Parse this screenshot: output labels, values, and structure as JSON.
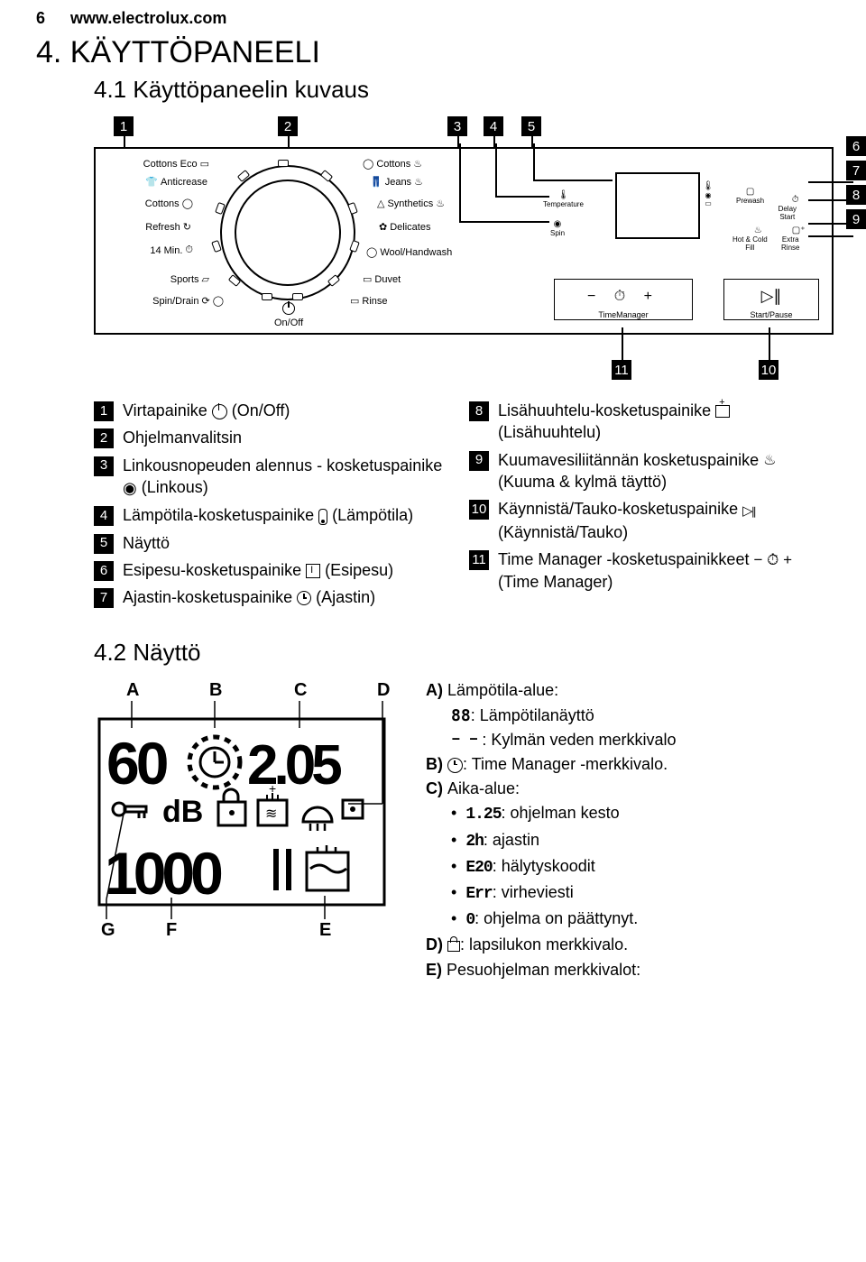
{
  "header": {
    "page_number": "6",
    "url": "www.electrolux.com"
  },
  "h1": "4. KÄYTTÖPANEELI",
  "s41": "4.1 Käyttöpaneelin kuvaus",
  "panel": {
    "left_labels": [
      "Cottons Eco",
      "Anticrease",
      "Cottons",
      "Refresh",
      "14 Min.",
      "Sports",
      "Spin/Drain"
    ],
    "right_labels": [
      "Cottons",
      "Jeans",
      "Synthetics",
      "Delicates",
      "Wool/Handwash",
      "Duvet",
      "Rinse"
    ],
    "onoff": "On/Off",
    "small": {
      "temperature": "Temperature",
      "spin": "Spin",
      "prewash": "Prewash",
      "delay": "Delay\nStart",
      "hotcold": "Hot & Cold\nFill",
      "extra": "Extra\nRinse"
    },
    "tm": "TimeManager",
    "sp": "Start/Pause",
    "tm_icons": "−  ⏱  +",
    "sp_icon": "▷∥"
  },
  "callouts": {
    "n1": "1",
    "n2": "2",
    "n3": "3",
    "n4": "4",
    "n5": "5",
    "n6": "6",
    "n7": "7",
    "n8": "8",
    "n9": "9",
    "n10": "10",
    "n11": "11"
  },
  "list_left": [
    {
      "n": "1",
      "t": "Virtapainike ",
      "t2": " (On/Off)",
      "icon": "power"
    },
    {
      "n": "2",
      "t": "Ohjelmanvalitsin",
      "icon": null
    },
    {
      "n": "3",
      "t": "Linkousnopeuden alennus - kosketuspainike ",
      "t2": " (Linkous)",
      "icon": "spiral"
    },
    {
      "n": "4",
      "t": "Lämpötila-kosketuspainike ",
      "t2": " (Lämpötila)",
      "icon": "therm"
    },
    {
      "n": "5",
      "t": "Näyttö",
      "icon": null
    },
    {
      "n": "6",
      "t": "Esipesu-kosketuspainike ",
      "t2": " (Esipesu)",
      "icon": "prewash"
    },
    {
      "n": "7",
      "t": "Ajastin-kosketuspainike ",
      "t2": " (Ajastin)",
      "icon": "clock"
    }
  ],
  "list_right": [
    {
      "n": "8",
      "t": "Lisähuuhtelu-kosketuspainike ",
      "t2": " (Lisähuuhtelu)",
      "icon": "rinse"
    },
    {
      "n": "9",
      "t": "Kuumavesiliitännän kosketuspainike ",
      "t2": " (Kuuma & kylmä täyttö)",
      "icon": "hot"
    },
    {
      "n": "10",
      "t": "Käynnistä/Tauko-kosketuspainike ",
      "t2": " (Käynnistä/Tauko)",
      "icon": "play"
    },
    {
      "n": "11",
      "t": "Time Manager -kosketuspainikkeet ",
      "t2": " (Time Manager)",
      "icon": "tm"
    }
  ],
  "s42": "4.2 Näyttö",
  "disp": {
    "letters": {
      "A": "A",
      "B": "B",
      "C": "C",
      "D": "D",
      "E": "E",
      "F": "F",
      "G": "G"
    },
    "seg1": "60",
    "seg2": "2.05",
    "seg3": "1000"
  },
  "legend": {
    "A": "Lämpötila-alue:",
    "A1": ": Lämpötilanäyttö",
    "A2": ": Kylmän veden merkkivalo",
    "B": ": Time Manager -merkkivalo.",
    "C": "Aika-alue:",
    "C1": ": ohjelman kesto",
    "C2": ": ajastin",
    "C3": ": hälytyskoodit",
    "C4": ": virheviesti",
    "C5": ": ohjelma on päättynyt.",
    "D": ": lapsilukon merkkivalo.",
    "E": "Pesuohjelman merkkivalot:",
    "sym": {
      "s88": "88",
      "dash": "– –",
      "s125": "1.25",
      "s2h": "2h",
      "e20": "E20",
      "err": "Err",
      "zero": "0"
    },
    "markers": {
      "A": "A)",
      "B": "B)",
      "C": "C)",
      "D": "D)",
      "E": "E)"
    }
  }
}
